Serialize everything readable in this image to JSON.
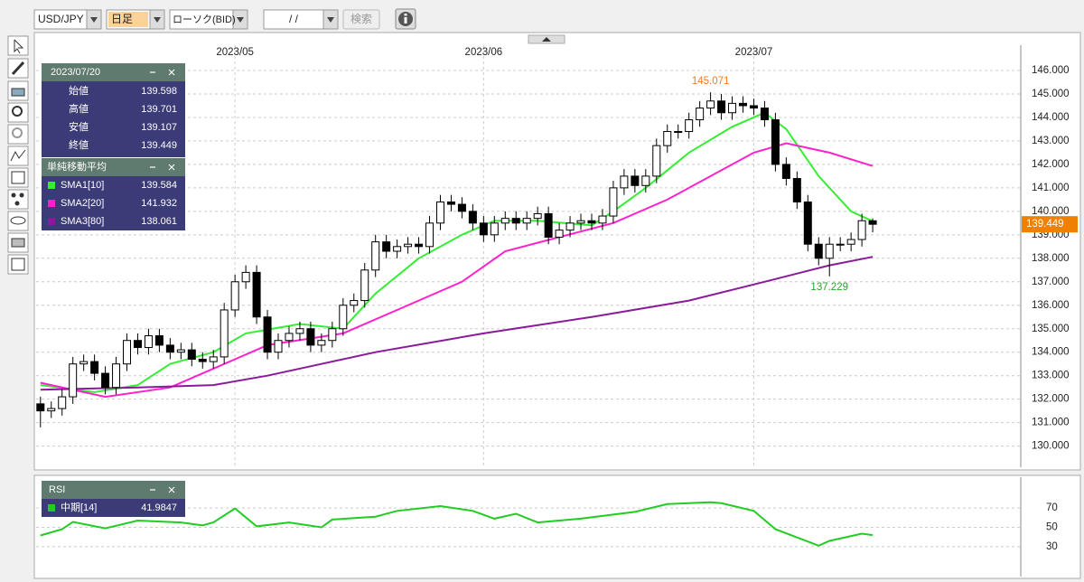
{
  "toolbar": {
    "pair": "USD/JPY",
    "period": "日足",
    "chart_type": "ローソク(BID)",
    "date": "/ /",
    "search": "検索"
  },
  "info_panel": {
    "date": "2023/07/20",
    "labels": [
      "始値",
      "高値",
      "安値",
      "終値"
    ],
    "sma_title": "単純移動平均"
  },
  "chart_data": [
    {
      "type": "candlestick",
      "xlim": [
        -0.4,
        90.7
      ],
      "ylim": [
        129.1,
        146.5
      ],
      "yticks": [
        {
          "value": 130,
          "label": "130.000"
        },
        {
          "value": 131,
          "label": "131.000"
        },
        {
          "value": 132,
          "label": "132.000"
        },
        {
          "value": 133,
          "label": "133.000"
        },
        {
          "value": 134,
          "label": "134.000"
        },
        {
          "value": 135,
          "label": "135.000"
        },
        {
          "value": 136,
          "label": "136.000"
        },
        {
          "value": 137,
          "label": "137.000"
        },
        {
          "value": 138,
          "label": "138.000"
        },
        {
          "value": 139,
          "label": "139.000"
        },
        {
          "value": 140,
          "label": "140.000"
        },
        {
          "value": 141,
          "label": "141.000"
        },
        {
          "value": 142,
          "label": "142.000"
        },
        {
          "value": 143,
          "label": "143.000"
        },
        {
          "value": 144,
          "label": "144.000"
        },
        {
          "value": 145,
          "label": "145.000"
        },
        {
          "value": 146,
          "label": "146.000"
        }
      ],
      "xticks": [
        {
          "value": 18,
          "label": "2023/05"
        },
        {
          "value": 41,
          "label": "2023/06"
        },
        {
          "value": 66,
          "label": "2023/07"
        }
      ],
      "grid": true,
      "current_price": 139.449,
      "current_price_color": "#f08000",
      "annotations": [
        {
          "value": 145.071,
          "position": "above",
          "color": "#f07a28"
        },
        {
          "value": 137.229,
          "position": "below",
          "color": "#2aa52a"
        }
      ],
      "open": [
        131.8,
        131.5,
        131.6,
        132.1,
        133.5,
        133.6,
        133.1,
        132.5,
        133.5,
        134.5,
        134.2,
        134.7,
        134.3,
        134.0,
        134.1,
        133.7,
        133.6,
        133.8,
        135.8,
        137.0,
        137.4,
        135.5,
        134.0,
        134.5,
        134.8,
        135.0,
        134.3,
        134.5,
        135.0,
        136.0,
        136.2,
        137.5,
        138.7,
        138.3,
        138.5,
        138.6,
        138.5,
        139.5,
        140.4,
        140.3,
        140.0,
        139.5,
        139.0,
        139.5,
        139.7,
        139.5,
        139.7,
        139.9,
        138.9,
        139.2,
        139.5,
        139.6,
        139.5,
        139.8,
        141.0,
        141.5,
        141.1,
        141.5,
        142.8,
        143.4,
        143.4,
        143.9,
        144.4,
        144.7,
        144.2,
        144.6,
        144.5,
        144.4,
        143.9,
        142.0,
        141.4,
        140.4,
        138.6,
        138.0,
        138.6,
        138.6,
        138.8,
        139.598
      ],
      "high": [
        132.1,
        131.9,
        132.4,
        133.8,
        133.9,
        133.9,
        133.4,
        133.8,
        134.8,
        134.8,
        135.0,
        135.0,
        134.6,
        134.4,
        134.4,
        134.0,
        134.1,
        136.1,
        137.3,
        137.7,
        137.7,
        135.8,
        134.8,
        135.1,
        135.3,
        135.3,
        134.8,
        135.3,
        136.3,
        136.5,
        137.8,
        139.0,
        139.0,
        138.8,
        138.9,
        138.9,
        139.8,
        140.7,
        140.7,
        140.6,
        140.3,
        139.8,
        139.8,
        140.0,
        140.0,
        140.0,
        140.2,
        140.2,
        139.5,
        139.8,
        139.9,
        139.9,
        140.1,
        141.3,
        141.8,
        141.8,
        141.8,
        143.1,
        143.7,
        143.7,
        144.2,
        144.7,
        145.071,
        145.0,
        144.9,
        144.9,
        144.8,
        144.7,
        144.2,
        142.3,
        141.7,
        140.7,
        138.9,
        138.9,
        138.9,
        139.1,
        139.9,
        139.701
      ],
      "low": [
        130.8,
        131.2,
        131.3,
        131.8,
        133.2,
        132.8,
        132.2,
        132.2,
        133.2,
        133.9,
        133.9,
        134.0,
        133.7,
        133.7,
        133.4,
        133.3,
        133.3,
        133.5,
        135.5,
        136.7,
        135.2,
        133.7,
        133.7,
        134.2,
        134.5,
        134.0,
        134.0,
        134.2,
        134.7,
        135.7,
        135.9,
        137.2,
        138.0,
        138.0,
        138.2,
        138.2,
        138.2,
        139.2,
        140.0,
        139.7,
        139.2,
        138.7,
        138.7,
        139.2,
        139.2,
        139.2,
        139.4,
        138.6,
        138.6,
        138.9,
        139.2,
        139.2,
        139.2,
        139.5,
        140.7,
        140.8,
        140.8,
        141.2,
        142.5,
        143.1,
        143.1,
        143.6,
        144.1,
        143.9,
        143.9,
        144.2,
        144.1,
        143.6,
        141.7,
        141.1,
        140.1,
        138.3,
        137.7,
        137.229,
        138.3,
        138.3,
        138.5,
        139.107
      ],
      "close": [
        131.5,
        131.6,
        132.1,
        133.5,
        133.6,
        133.1,
        132.5,
        133.5,
        134.5,
        134.2,
        134.7,
        134.3,
        134.0,
        134.1,
        133.7,
        133.6,
        133.8,
        135.8,
        137.0,
        137.4,
        135.5,
        134.0,
        134.5,
        134.8,
        135.0,
        134.3,
        134.5,
        135.0,
        136.0,
        136.2,
        137.5,
        138.7,
        138.3,
        138.5,
        138.6,
        138.5,
        139.5,
        140.4,
        140.3,
        140.0,
        139.5,
        139.0,
        139.5,
        139.7,
        139.5,
        139.7,
        139.9,
        138.9,
        139.2,
        139.5,
        139.6,
        139.5,
        139.8,
        141.0,
        141.5,
        141.1,
        141.5,
        142.8,
        143.4,
        143.4,
        143.9,
        144.4,
        144.7,
        144.2,
        144.6,
        144.5,
        144.4,
        143.9,
        142.0,
        141.4,
        140.4,
        138.6,
        138.0,
        138.6,
        138.6,
        138.8,
        139.6,
        139.449
      ],
      "series": [
        {
          "name": "SMA1[10]",
          "color": "#33ee33",
          "x": [
            0,
            5,
            9,
            12,
            16,
            19,
            24,
            28,
            31,
            35,
            39,
            42,
            46,
            51,
            53,
            56,
            60,
            64,
            67,
            69,
            72,
            75,
            77
          ],
          "values": [
            132.6,
            132.3,
            132.6,
            133.5,
            134.0,
            134.8,
            135.2,
            135.0,
            136.5,
            138.0,
            139.0,
            139.6,
            139.6,
            139.4,
            140.0,
            141.0,
            142.5,
            143.6,
            144.2,
            143.5,
            141.5,
            140.0,
            139.584
          ]
        },
        {
          "name": "SMA2[20]",
          "color": "#ff22cc",
          "x": [
            0,
            6,
            12,
            16,
            21,
            28,
            33,
            39,
            43,
            48,
            53,
            58,
            62,
            66,
            69,
            73,
            77
          ],
          "values": [
            132.7,
            132.1,
            132.5,
            133.3,
            134.3,
            134.8,
            135.8,
            137.0,
            138.3,
            138.9,
            139.5,
            140.5,
            141.5,
            142.5,
            142.9,
            142.5,
            141.932
          ]
        },
        {
          "name": "SMA3[80]",
          "color": "#8b1a9b",
          "x": [
            0,
            9,
            16,
            21,
            31,
            41,
            51,
            60,
            67,
            73,
            77
          ],
          "values": [
            132.4,
            132.5,
            132.6,
            133.0,
            134.0,
            134.8,
            135.5,
            136.2,
            137.0,
            137.7,
            138.061
          ]
        }
      ]
    },
    {
      "type": "line",
      "title": "RSI",
      "xlim": [
        -0.4,
        90.7
      ],
      "ylim": [
        0,
        100
      ],
      "yticks": [
        30,
        50,
        70
      ],
      "grid": true,
      "series": [
        {
          "name": "中期[14]",
          "color": "#22cc22",
          "x": [
            0,
            2,
            3,
            6,
            9,
            13,
            15,
            16,
            18,
            20,
            23,
            26,
            27,
            31,
            33,
            37,
            40,
            42,
            44,
            46,
            50,
            55,
            58,
            62,
            63,
            66,
            68,
            72,
            73,
            76,
            77
          ],
          "values": [
            41.6,
            48,
            55.6,
            49,
            57,
            55,
            52,
            55,
            69.5,
            51,
            55,
            50,
            58,
            61,
            67,
            72,
            67,
            59,
            64,
            55,
            59,
            66,
            74,
            76,
            75,
            67,
            48,
            31,
            36,
            43.5,
            41.9847
          ]
        }
      ]
    }
  ]
}
